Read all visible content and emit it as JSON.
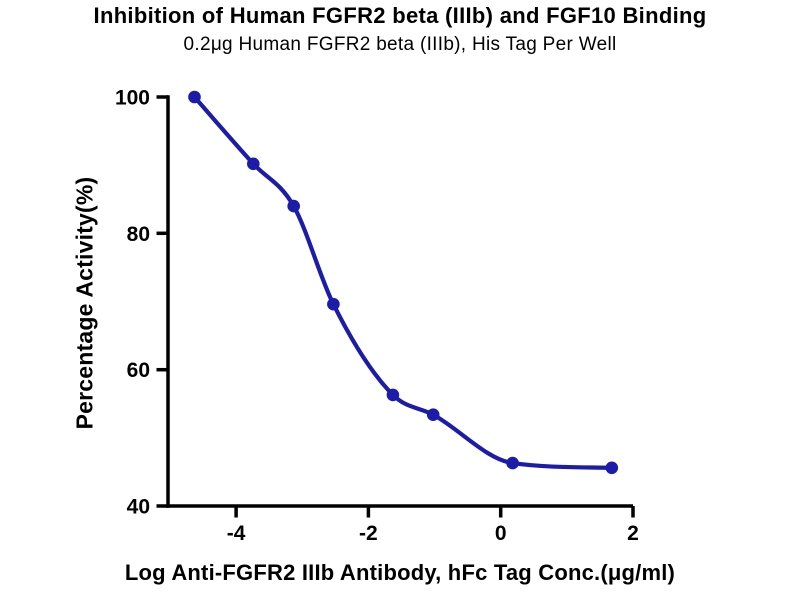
{
  "page": {
    "background": "#ffffff"
  },
  "chart_data": {
    "type": "scatter",
    "title": "Inhibition of Human FGFR2 beta (IIIb) and FGF10 Binding",
    "subtitle": "0.2μg Human FGFR2 beta (IIIb), His Tag Per Well",
    "xlabel": "Log Anti-FGFR2 IIIb Antibody, hFc Tag Conc.(μg/ml)",
    "ylabel": "Percentage Activity(%)",
    "xlim": [
      -5.03,
      2.0
    ],
    "ylim": [
      40,
      100
    ],
    "xticks": [
      -4,
      -2,
      0,
      2
    ],
    "yticks": [
      40,
      60,
      80,
      100
    ],
    "grid": false,
    "legend": "none",
    "series": [
      {
        "name": "Anti-FGFR2 IIIb Antibody, hFc Tag",
        "marker": "circle",
        "line": "smooth-fit",
        "x": [
          -4.63,
          -3.74,
          -3.13,
          -2.53,
          -1.63,
          -1.02,
          0.18,
          1.68
        ],
        "y": [
          100,
          90.2,
          84.0,
          69.6,
          56.3,
          53.4,
          46.3,
          45.6
        ]
      }
    ],
    "colors": {
      "series": "#1c1caa",
      "axis": "#000000",
      "text": "#000000",
      "background": "#ffffff"
    }
  }
}
